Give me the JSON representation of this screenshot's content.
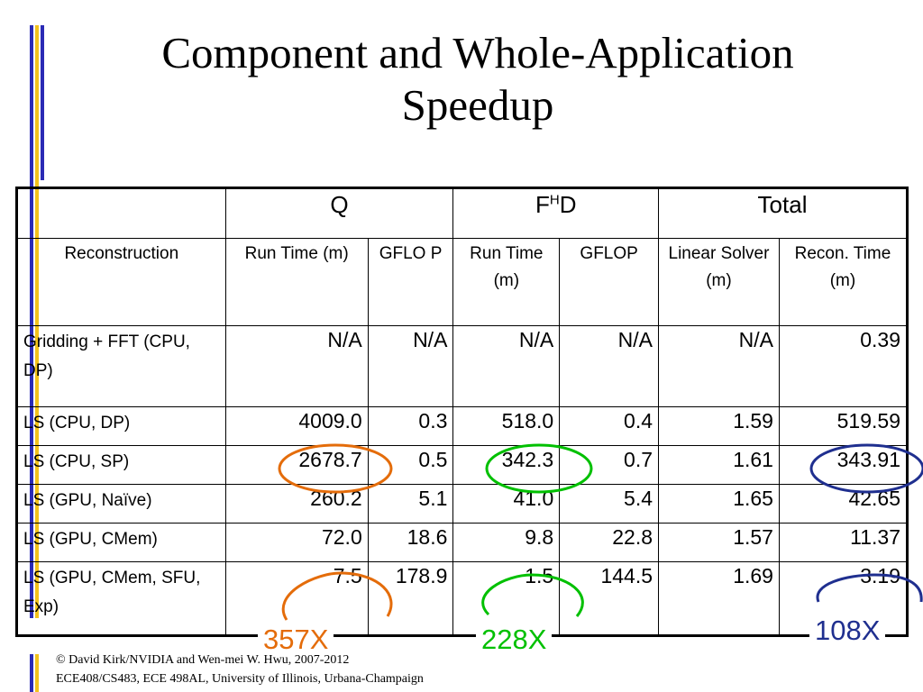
{
  "title": {
    "line1": "Component and Whole-Application",
    "line2": "Speedup"
  },
  "table": {
    "group_headers": {
      "q": "Q",
      "fhd_base": "F",
      "fhd_sup": "H",
      "fhd_tail": "D",
      "total": "Total"
    },
    "sub_headers": {
      "reconstruction": "Reconstruction",
      "q_runtime": "Run  Time (m)",
      "q_gflop": "GFLO P",
      "fhd_runtime": "Run Time (m)",
      "fhd_gflop": "GFLOP",
      "linear_solver": "Linear Solver (m)",
      "recon_time": "Recon. Time (m)"
    },
    "rows": [
      {
        "label": "Gridding + FFT (CPU, DP)",
        "q_rt": "N/A",
        "q_gf": "N/A",
        "f_rt": "N/A",
        "f_gf": "N/A",
        "ls": "N/A",
        "total": "0.39"
      },
      {
        "label": "LS (CPU, DP)",
        "q_rt": "4009.0",
        "q_gf": "0.3",
        "f_rt": "518.0",
        "f_gf": "0.4",
        "ls": "1.59",
        "total": "519.59"
      },
      {
        "label": "LS (CPU, SP)",
        "q_rt": "2678.7",
        "q_gf": "0.5",
        "f_rt": "342.3",
        "f_gf": "0.7",
        "ls": "1.61",
        "total": "343.91"
      },
      {
        "label": "LS (GPU, Naïve)",
        "q_rt": "260.2",
        "q_gf": "5.1",
        "f_rt": "41.0",
        "f_gf": "5.4",
        "ls": "1.65",
        "total": "42.65"
      },
      {
        "label": "LS (GPU, CMem)",
        "q_rt": "72.0",
        "q_gf": "18.6",
        "f_rt": "9.8",
        "f_gf": "22.8",
        "ls": "1.57",
        "total": "11.37"
      },
      {
        "label": "LS (GPU, CMem, SFU, Exp)",
        "q_rt": "7.5",
        "q_gf": "178.9",
        "f_rt": "1.5",
        "f_gf": "144.5",
        "ls": "1.69",
        "total": "3.19"
      }
    ]
  },
  "annotations": {
    "q_speedup": "357X",
    "fhd_speedup": "228X",
    "total_speedup": "108X",
    "colors": {
      "q": "#e46c0a",
      "fhd": "#00c000",
      "total": "#1f2f8f"
    }
  },
  "footer": {
    "line1": "© David Kirk/NVIDIA and Wen-mei W. Hwu, 2007-2012",
    "line2": "ECE408/CS483, ECE 498AL, University of Illinois, Urbana-Champaign"
  },
  "theme": {
    "accent_blue": "#2b2bb5",
    "accent_yellow": "#f2c21b"
  }
}
